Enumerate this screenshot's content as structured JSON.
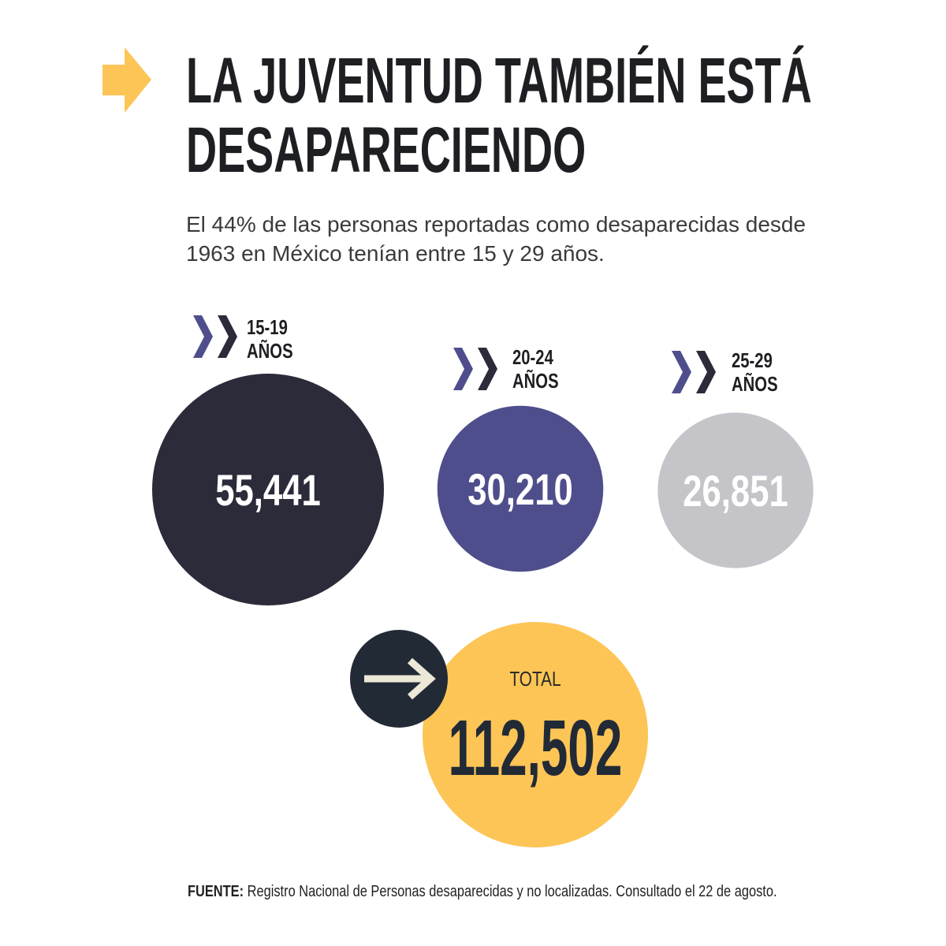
{
  "header": {
    "title_line1": "LA JUVENTUD TAMBIÉN ESTÁ",
    "title_line2": "DESAPARECIENDO",
    "subtitle": "El 44% de las personas reportadas como desaparecidas desde 1963 en México tenían entre 15 y 29 años."
  },
  "chart_data": {
    "type": "bubble",
    "categories": [
      "15-19 AÑOS",
      "20-24 AÑOS",
      "25-29 AÑOS"
    ],
    "category_parts": [
      [
        "15-19",
        "AÑOS"
      ],
      [
        "20-24",
        "AÑOS"
      ],
      [
        "25-29",
        "AÑOS"
      ]
    ],
    "values": [
      55441,
      30210,
      26851
    ],
    "value_labels": [
      "55,441",
      "30,210",
      "26,851"
    ],
    "colors": [
      "#2b2b3a",
      "#4f4e8c",
      "#c5c4c8"
    ],
    "total_label": "TOTAL",
    "total_value": 112502,
    "total_value_label": "112,502",
    "total_color": "#fcc556"
  },
  "colors": {
    "accent_arrow": "#fcc556",
    "chevron_light": "#4f4e8c",
    "chevron_dark": "#2b2b3a",
    "arrow_circle": "#222a36",
    "arrow_glyph": "#ece8d8"
  },
  "footer": {
    "source_label": "FUENTE:",
    "source_text": " Registro Nacional de Personas desaparecidas y no localizadas. Consultado el 22 de agosto."
  }
}
